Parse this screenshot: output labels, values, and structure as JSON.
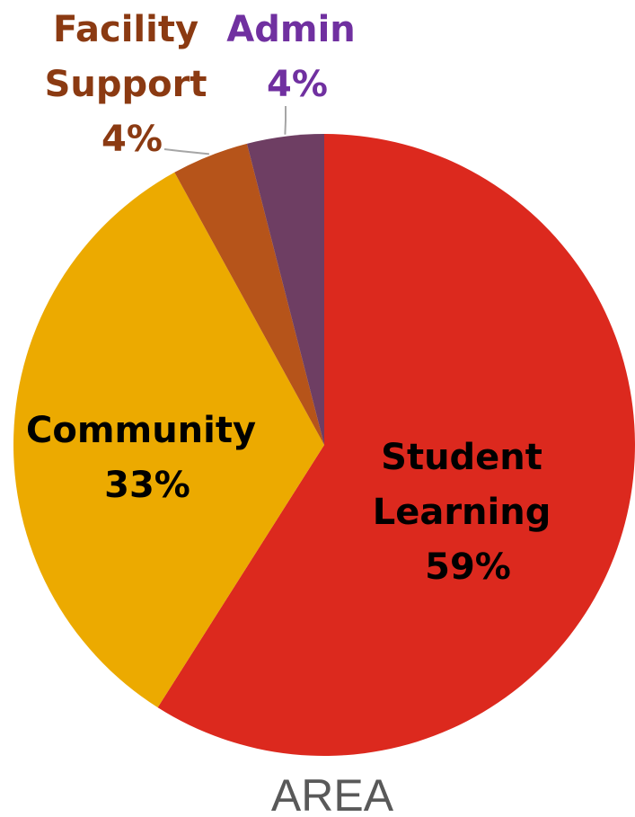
{
  "chart_data": {
    "type": "pie",
    "title": "AREA",
    "start_angle_deg": 0,
    "direction": "clockwise",
    "legend": "none",
    "slices": [
      {
        "label_lines": [
          "Student",
          "Learning"
        ],
        "percent_label": "59%",
        "value": 59,
        "color": "#DC291E",
        "label_color": "#000000"
      },
      {
        "label_lines": [
          "Community"
        ],
        "percent_label": "33%",
        "value": 33,
        "color": "#ECAA00",
        "label_color": "#000000"
      },
      {
        "label_lines": [
          "Facility",
          "Support"
        ],
        "percent_label": "4%",
        "value": 4,
        "color": "#B6541A",
        "label_color": "#8B3A12"
      },
      {
        "label_lines": [
          "Admin"
        ],
        "percent_label": "4%",
        "value": 4,
        "color": "#6E3E63",
        "label_color": "#7030A0"
      }
    ]
  }
}
